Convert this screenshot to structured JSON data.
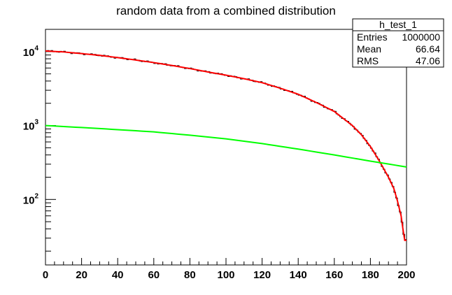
{
  "chart_data": {
    "type": "line",
    "title": "random data from a combined distribution",
    "xlabel": "",
    "ylabel": "",
    "xlim": [
      0,
      200
    ],
    "ylim": [
      13,
      20000
    ],
    "y_scale": "log",
    "x_ticks": [
      "0",
      "20",
      "40",
      "60",
      "80",
      "100",
      "120",
      "140",
      "160",
      "180",
      "200"
    ],
    "y_ticks": [
      {
        "base": "10",
        "exp": "2",
        "value": 100
      },
      {
        "base": "10",
        "exp": "3",
        "value": 1000
      },
      {
        "base": "10",
        "exp": "4",
        "value": 10000
      }
    ],
    "grid": false,
    "series": [
      {
        "color": "#000000",
        "kind": "histogram",
        "x": [
          0,
          10,
          20,
          30,
          40,
          50,
          60,
          70,
          80,
          90,
          100,
          110,
          120,
          130,
          140,
          150,
          160,
          170,
          175,
          180,
          185,
          190,
          193,
          195,
          197,
          198,
          199,
          200
        ],
        "values": [
          10200,
          9900,
          9400,
          8900,
          8300,
          7700,
          7100,
          6500,
          5900,
          5300,
          4800,
          4300,
          3800,
          3200,
          2650,
          2050,
          1550,
          1000,
          750,
          520,
          330,
          200,
          140,
          95,
          60,
          40,
          28,
          28
        ]
      },
      {
        "color": "#ff0000",
        "kind": "fit",
        "x": [
          0,
          10,
          20,
          30,
          40,
          50,
          60,
          70,
          80,
          90,
          100,
          110,
          120,
          130,
          140,
          150,
          160,
          170,
          175,
          180,
          185,
          190,
          193,
          195,
          197,
          198,
          199,
          200
        ],
        "values": [
          10200,
          9900,
          9400,
          8900,
          8300,
          7700,
          7100,
          6500,
          5900,
          5300,
          4800,
          4300,
          3800,
          3200,
          2650,
          2050,
          1550,
          1000,
          750,
          520,
          330,
          200,
          140,
          95,
          60,
          40,
          28,
          28
        ]
      },
      {
        "color": "#00ff00",
        "kind": "fit",
        "x": [
          0,
          20,
          40,
          60,
          80,
          100,
          120,
          140,
          160,
          180,
          200
        ],
        "values": [
          1000,
          940,
          880,
          820,
          740,
          660,
          570,
          480,
          400,
          330,
          275
        ]
      }
    ],
    "stats_box": {
      "title": "h_test_1",
      "rows": [
        {
          "label": "Entries",
          "value": "1000000"
        },
        {
          "label": "Mean",
          "value": "66.64"
        },
        {
          "label": "RMS",
          "value": "47.06"
        }
      ]
    }
  }
}
